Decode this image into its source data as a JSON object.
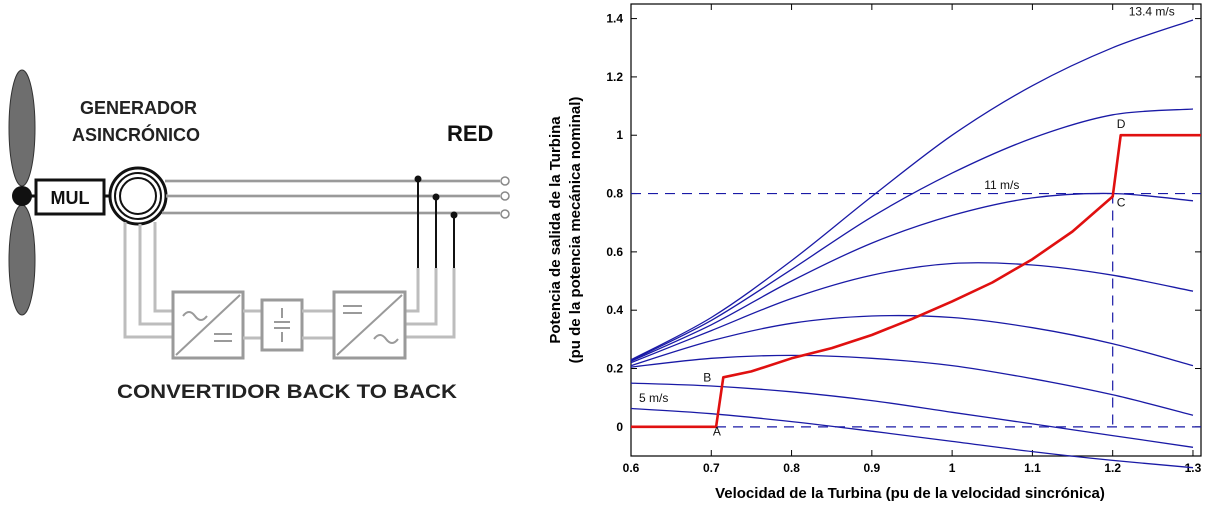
{
  "diagram": {
    "generator_label_line1": "GENERADOR",
    "generator_label_line2": "ASINCRÓNICO",
    "grid_label": "RED",
    "multiplier_label": "MUL",
    "converter_label": "CONVERTIDOR BACK TO BACK",
    "colors": {
      "line": "#bdbdbd",
      "dark": "#111111",
      "blade": "#6e6e6e"
    },
    "icons": [
      "wind-rotor-icon",
      "rectifier-icon",
      "dc-link-icon",
      "inverter-icon",
      "grid-terminal-icon"
    ]
  },
  "chart_data": {
    "type": "line",
    "xlabel": "Velocidad de la Turbina (pu de la velocidad sincrónica)",
    "ylabel_line1": "Potencia de salida de la Turbina",
    "ylabel_line2": "(pu de la potencia mecánica nominal)",
    "xlim": [
      0.6,
      1.31
    ],
    "ylim": [
      -0.1,
      1.45
    ],
    "x_ticks": [
      0.6,
      0.7,
      0.8,
      0.9,
      1,
      1.1,
      1.2,
      1.3
    ],
    "x_tick_labels": [
      "0.6",
      "0.7",
      "0.8",
      "0.9",
      "1",
      "1.1",
      "1.2",
      "1.3"
    ],
    "y_ticks": [
      0,
      0.2,
      0.4,
      0.6,
      0.8,
      1,
      1.2,
      1.4
    ],
    "y_tick_labels": [
      "0",
      "0.2",
      "0.4",
      "0.6",
      "0.8",
      "1",
      "1.2",
      "1.4"
    ],
    "grid": false,
    "colors": {
      "curves": "#1a1aa6",
      "tracking": "#e01010",
      "axis": "#000000"
    },
    "series": [
      {
        "x": [
          0.6,
          0.7,
          0.8,
          0.9,
          1.0,
          1.1,
          1.2,
          1.3
        ],
        "y": [
          0.063,
          0.045,
          0.018,
          -0.015,
          -0.05,
          -0.085,
          -0.115,
          -0.14
        ]
      },
      {
        "x": [
          0.6,
          0.7,
          0.8,
          0.9,
          1.0,
          1.1,
          1.2,
          1.3
        ],
        "y": [
          0.15,
          0.14,
          0.12,
          0.09,
          0.05,
          0.01,
          -0.03,
          -0.07
        ]
      },
      {
        "x": [
          0.6,
          0.7,
          0.8,
          0.9,
          1.0,
          1.1,
          1.2,
          1.3
        ],
        "y": [
          0.205,
          0.235,
          0.245,
          0.235,
          0.21,
          0.165,
          0.11,
          0.04
        ]
      },
      {
        "x": [
          0.6,
          0.7,
          0.8,
          0.9,
          1.0,
          1.1,
          1.2,
          1.3
        ],
        "y": [
          0.21,
          0.295,
          0.355,
          0.38,
          0.375,
          0.34,
          0.285,
          0.21
        ]
      },
      {
        "x": [
          0.6,
          0.7,
          0.8,
          0.9,
          1.0,
          1.1,
          1.2,
          1.3
        ],
        "y": [
          0.22,
          0.33,
          0.44,
          0.52,
          0.56,
          0.555,
          0.52,
          0.465
        ]
      },
      {
        "x": [
          0.6,
          0.7,
          0.8,
          0.9,
          1.0,
          1.1,
          1.2,
          1.3
        ],
        "y": [
          0.225,
          0.35,
          0.5,
          0.63,
          0.725,
          0.785,
          0.8,
          0.775
        ]
      },
      {
        "x": [
          0.6,
          0.7,
          0.8,
          0.9,
          1.0,
          1.1,
          1.2,
          1.3
        ],
        "y": [
          0.228,
          0.365,
          0.54,
          0.72,
          0.87,
          0.99,
          1.07,
          1.09
        ]
      },
      {
        "x": [
          0.6,
          0.7,
          0.8,
          0.9,
          1.0,
          1.1,
          1.2,
          1.3
        ],
        "y": [
          0.23,
          0.375,
          0.57,
          0.79,
          1.0,
          1.17,
          1.3,
          1.395
        ]
      }
    ],
    "tracking_curve": {
      "x": [
        0.6,
        0.706,
        0.715,
        0.75,
        0.8,
        0.85,
        0.9,
        0.95,
        1.0,
        1.05,
        1.1,
        1.15,
        1.2,
        1.21,
        1.31
      ],
      "y": [
        0.0,
        0.0,
        0.17,
        0.19,
        0.235,
        0.27,
        0.315,
        0.37,
        0.43,
        0.495,
        0.575,
        0.67,
        0.79,
        1.0,
        1.0
      ]
    },
    "reference_lines": {
      "y_rated": 0.8,
      "x_rated": 1.2,
      "y_zero": 0
    },
    "annotations": [
      {
        "text": "13.4 m/s",
        "x": 1.22,
        "y": 1.41
      },
      {
        "text": "11 m/s",
        "x": 1.04,
        "y": 0.815
      },
      {
        "text": "5 m/s",
        "x": 0.61,
        "y": 0.085
      },
      {
        "text": "A",
        "x": 0.702,
        "y": -0.03
      },
      {
        "text": "B",
        "x": 0.69,
        "y": 0.155
      },
      {
        "text": "C",
        "x": 1.205,
        "y": 0.755
      },
      {
        "text": "D",
        "x": 1.205,
        "y": 1.025
      }
    ]
  }
}
